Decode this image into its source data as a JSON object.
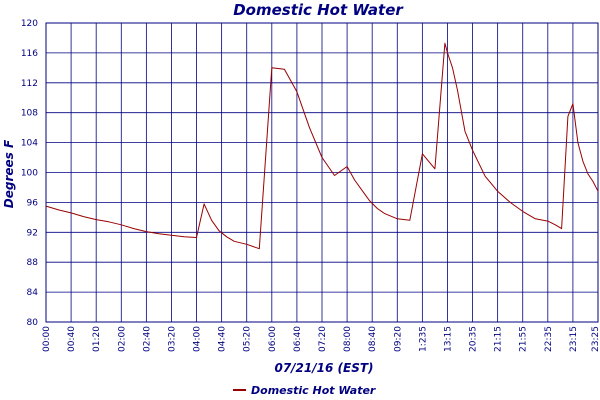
{
  "chart_data": {
    "type": "line",
    "title": "Domestic Hot Water",
    "xlabel": "07/21/16 (EST)",
    "ylabel": "Degrees F",
    "ylim": [
      80,
      120
    ],
    "y_ticks": [
      "80",
      "84",
      "88",
      "92",
      "96",
      "100",
      "104",
      "108",
      "112",
      "116",
      "120"
    ],
    "x_tick_labels": [
      "00:00",
      "00:40",
      "01:20",
      "02:00",
      "02:40",
      "03:20",
      "04:00",
      "04:40",
      "05:20",
      "06:00",
      "06:40",
      "07:20",
      "08:00",
      "08:40",
      "09:20",
      "1:235",
      "13:15",
      "20:35",
      "21:15",
      "21:55",
      "22:35",
      "23:15",
      "23:25"
    ],
    "grid": true,
    "legend_position": "bottom-left",
    "colors": {
      "series": "#990000",
      "grid": "#000080",
      "text": "#000080"
    },
    "series": [
      {
        "name": "Domestic Hot Water",
        "x": [
          0,
          0.5,
          1,
          1.5,
          2,
          2.5,
          3,
          3.5,
          4,
          4.5,
          5,
          5.5,
          6,
          6.3,
          6.6,
          6.9,
          7.2,
          7.5,
          8,
          8.5,
          9,
          9.5,
          10,
          10.5,
          11,
          11.5,
          12,
          12.3,
          12.6,
          12.9,
          13.2,
          13.5,
          14,
          14.5,
          15,
          15.5,
          15.9,
          16,
          16.2,
          16.4,
          16.7,
          17,
          17.5,
          18,
          18.5,
          19,
          19.5,
          20,
          20.3,
          20.45,
          20.55,
          20.8,
          21,
          21.2,
          21.4,
          21.6,
          21.8,
          22
        ],
        "y": [
          95.5,
          95.0,
          94.6,
          94.1,
          93.7,
          93.4,
          93.0,
          92.5,
          92.1,
          91.8,
          91.6,
          91.4,
          91.3,
          95.8,
          93.6,
          92.2,
          91.4,
          90.8,
          90.4,
          89.8,
          114.0,
          113.8,
          110.8,
          106.0,
          102.0,
          99.6,
          100.8,
          99.0,
          97.6,
          96.2,
          95.2,
          94.5,
          93.8,
          93.6,
          102.5,
          100.5,
          117.3,
          116.0,
          114.0,
          111.0,
          105.5,
          103.0,
          99.5,
          97.5,
          96.0,
          94.8,
          93.8,
          93.5,
          93.0,
          92.7,
          92.5,
          107.5,
          109.2,
          104.0,
          101.5,
          99.8,
          98.8,
          97.5
        ]
      }
    ]
  },
  "legend": {
    "label": "Domestic Hot Water"
  }
}
